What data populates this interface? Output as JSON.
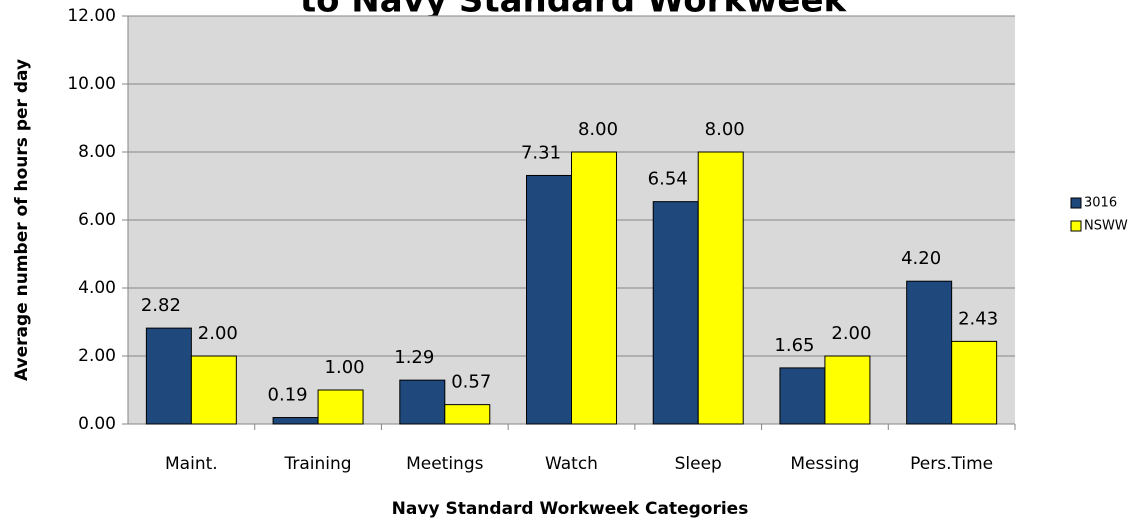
{
  "chart_data": {
    "type": "bar",
    "title": "to Navy Standard Workweek",
    "x_label": "Navy Standard Workweek Categories",
    "y_label": "Average number of hours per day",
    "categories": [
      "Maint.",
      "Training",
      "Meetings",
      "Watch",
      "Sleep",
      "Messing",
      "Pers.Time"
    ],
    "series": [
      {
        "name": "3016",
        "color": "#1f487c",
        "values": [
          2.82,
          0.19,
          1.29,
          7.31,
          6.54,
          1.65,
          4.2
        ],
        "value_labels": [
          "2.82",
          "0.19",
          "1.29",
          "7.31",
          "6.54",
          "1.65",
          "4.20"
        ]
      },
      {
        "name": "NSWW",
        "color": "#ffff00",
        "values": [
          2,
          1,
          0.57,
          8,
          8,
          2,
          2.43
        ],
        "value_labels": [
          "2.00",
          "1.00",
          "0.57",
          "8.00",
          "8.00",
          "2.00",
          "2.43"
        ]
      }
    ],
    "ylim": [
      0,
      12
    ],
    "yticks": [
      {
        "value": 0,
        "label": "0.00"
      },
      {
        "value": 2,
        "label": "2.00"
      },
      {
        "value": 4,
        "label": "4.00"
      },
      {
        "value": 6,
        "label": "6.00"
      },
      {
        "value": 8,
        "label": "8.00"
      },
      {
        "value": 10,
        "label": "10.00"
      },
      {
        "value": 12,
        "label": "12.00"
      }
    ],
    "grid": true,
    "legend": "right"
  }
}
